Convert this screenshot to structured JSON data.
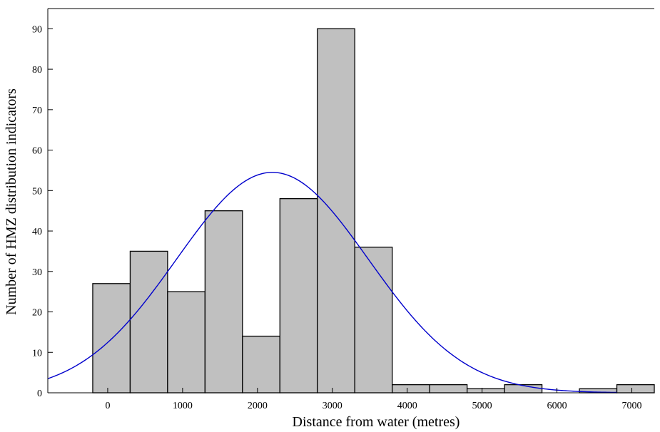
{
  "chart_data": {
    "type": "bar",
    "xlabel": "Distance from water (metres)",
    "ylabel": "Number of HMZ distribution indicators",
    "xlim": [
      -800,
      7300
    ],
    "ylim": [
      0,
      95
    ],
    "x_ticks": [
      0,
      1000,
      2000,
      3000,
      4000,
      5000,
      6000,
      7000
    ],
    "y_ticks": [
      0,
      10,
      20,
      30,
      40,
      50,
      60,
      70,
      80,
      90
    ],
    "bins": [
      {
        "x0": -200,
        "x1": 300,
        "value": 27
      },
      {
        "x0": 300,
        "x1": 800,
        "value": 35
      },
      {
        "x0": 800,
        "x1": 1300,
        "value": 25
      },
      {
        "x0": 1300,
        "x1": 1800,
        "value": 45
      },
      {
        "x0": 1800,
        "x1": 2300,
        "value": 14
      },
      {
        "x0": 2300,
        "x1": 2800,
        "value": 48
      },
      {
        "x0": 2800,
        "x1": 3300,
        "value": 90
      },
      {
        "x0": 3300,
        "x1": 3800,
        "value": 36
      },
      {
        "x0": 3800,
        "x1": 4300,
        "value": 2
      },
      {
        "x0": 4300,
        "x1": 4800,
        "value": 2
      },
      {
        "x0": 4800,
        "x1": 5300,
        "value": 1
      },
      {
        "x0": 5300,
        "x1": 5800,
        "value": 2
      },
      {
        "x0": 5800,
        "x1": 6300,
        "value": 0
      },
      {
        "x0": 6300,
        "x1": 6800,
        "value": 1
      },
      {
        "x0": 6800,
        "x1": 7300,
        "value": 2
      }
    ],
    "normal_fit": {
      "mean": 2200,
      "sd": 1280,
      "peak": 54.5,
      "x_end": 6800
    },
    "colors": {
      "bar_fill": "#c0c0c0",
      "bar_stroke": "#000000",
      "curve": "#0000cc",
      "axis": "#000000"
    },
    "grid": false,
    "legend": "none"
  }
}
